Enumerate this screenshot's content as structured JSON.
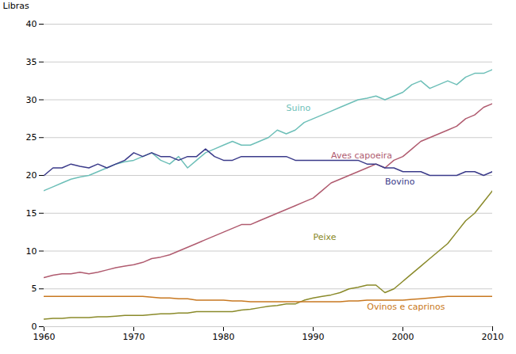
{
  "chart_data": {
    "type": "line",
    "ylabel": "Libras",
    "x": [
      1960,
      1961,
      1962,
      1963,
      1964,
      1965,
      1966,
      1967,
      1968,
      1969,
      1970,
      1971,
      1972,
      1973,
      1974,
      1975,
      1976,
      1977,
      1978,
      1979,
      1980,
      1981,
      1982,
      1983,
      1984,
      1985,
      1986,
      1987,
      1988,
      1989,
      1990,
      1991,
      1992,
      1993,
      1994,
      1995,
      1996,
      1997,
      1998,
      1999,
      2000,
      2001,
      2002,
      2003,
      2004,
      2005,
      2006,
      2007,
      2008,
      2009,
      2010
    ],
    "series": [
      {
        "name": "Suino",
        "color": "#6dbfb8",
        "values": [
          18.0,
          18.5,
          19.0,
          19.5,
          19.8,
          20.0,
          20.5,
          21.0,
          21.5,
          21.8,
          22.0,
          22.5,
          23.0,
          22.0,
          21.5,
          22.5,
          21.0,
          22.0,
          23.0,
          23.5,
          24.0,
          24.5,
          24.0,
          24.0,
          24.5,
          25.0,
          26.0,
          25.5,
          26.0,
          27.0,
          27.5,
          28.0,
          28.5,
          29.0,
          29.5,
          30.0,
          30.2,
          30.5,
          30.0,
          30.5,
          31.0,
          32.0,
          32.5,
          31.5,
          32.0,
          32.5,
          32.0,
          33.0,
          33.5,
          33.5,
          34.0
        ]
      },
      {
        "name": "Aves capoeira",
        "color": "#b05b6f",
        "values": [
          6.5,
          6.8,
          7.0,
          7.0,
          7.2,
          7.0,
          7.2,
          7.5,
          7.8,
          8.0,
          8.2,
          8.5,
          9.0,
          9.2,
          9.5,
          10.0,
          10.5,
          11.0,
          11.5,
          12.0,
          12.5,
          13.0,
          13.5,
          13.5,
          14.0,
          14.5,
          15.0,
          15.5,
          16.0,
          16.5,
          17.0,
          18.0,
          19.0,
          19.5,
          20.0,
          20.5,
          21.0,
          21.5,
          21.0,
          22.0,
          22.5,
          23.5,
          24.5,
          25.0,
          25.5,
          26.0,
          26.5,
          27.5,
          28.0,
          29.0,
          29.5
        ]
      },
      {
        "name": "Bovino",
        "color": "#3b3b8a",
        "values": [
          20.0,
          21.0,
          21.0,
          21.5,
          21.2,
          21.0,
          21.5,
          21.0,
          21.5,
          22.0,
          23.0,
          22.5,
          23.0,
          22.5,
          22.5,
          22.0,
          22.5,
          22.5,
          23.5,
          22.5,
          22.0,
          22.0,
          22.5,
          22.5,
          22.5,
          22.5,
          22.5,
          22.5,
          22.0,
          22.0,
          22.0,
          22.0,
          22.0,
          22.0,
          22.0,
          22.0,
          21.5,
          21.5,
          21.0,
          21.0,
          20.5,
          20.5,
          20.5,
          20.0,
          20.0,
          20.0,
          20.0,
          20.5,
          20.5,
          20.0,
          20.5
        ]
      },
      {
        "name": "Peixe",
        "color": "#8a8a2a",
        "values": [
          1.0,
          1.1,
          1.1,
          1.2,
          1.2,
          1.2,
          1.3,
          1.3,
          1.4,
          1.5,
          1.5,
          1.5,
          1.6,
          1.7,
          1.7,
          1.8,
          1.8,
          2.0,
          2.0,
          2.0,
          2.0,
          2.0,
          2.2,
          2.3,
          2.5,
          2.7,
          2.8,
          3.0,
          3.0,
          3.5,
          3.8,
          4.0,
          4.2,
          4.5,
          5.0,
          5.2,
          5.5,
          5.5,
          4.5,
          5.0,
          6.0,
          7.0,
          8.0,
          9.0,
          10.0,
          11.0,
          12.5,
          14.0,
          15.0,
          16.5,
          18.0
        ]
      },
      {
        "name": "Ovinos e caprinos",
        "color": "#c87820",
        "values": [
          4.0,
          4.0,
          4.0,
          4.0,
          4.0,
          4.0,
          4.0,
          4.0,
          4.0,
          4.0,
          4.0,
          4.0,
          3.9,
          3.8,
          3.8,
          3.7,
          3.7,
          3.5,
          3.5,
          3.5,
          3.5,
          3.4,
          3.4,
          3.3,
          3.3,
          3.3,
          3.3,
          3.3,
          3.3,
          3.3,
          3.3,
          3.3,
          3.3,
          3.3,
          3.4,
          3.4,
          3.5,
          3.5,
          3.5,
          3.5,
          3.5,
          3.6,
          3.7,
          3.8,
          3.9,
          4.0,
          4.0,
          4.0,
          4.0,
          4.0,
          4.0
        ]
      }
    ],
    "annotations": [
      {
        "text": "Suino",
        "x": 1987,
        "y": 28.5,
        "color": "#6dbfb8"
      },
      {
        "text": "Aves capoeira",
        "x": 1992,
        "y": 22.3,
        "color": "#b05b6f"
      },
      {
        "text": "Bovino",
        "x": 1998,
        "y": 18.8,
        "color": "#3b3b8a"
      },
      {
        "text": "Peixe",
        "x": 1990,
        "y": 11.5,
        "color": "#8a8a2a"
      },
      {
        "text": "Ovinos e caprinos",
        "x": 1996,
        "y": 2.3,
        "color": "#c87820"
      }
    ],
    "xlim": [
      1960,
      2010
    ],
    "ylim": [
      0,
      40
    ],
    "xticks": [
      1960,
      1970,
      1980,
      1990,
      2000,
      2010
    ],
    "yticks": [
      0,
      5,
      10,
      15,
      20,
      25,
      30,
      35,
      40
    ],
    "grid": "y"
  }
}
